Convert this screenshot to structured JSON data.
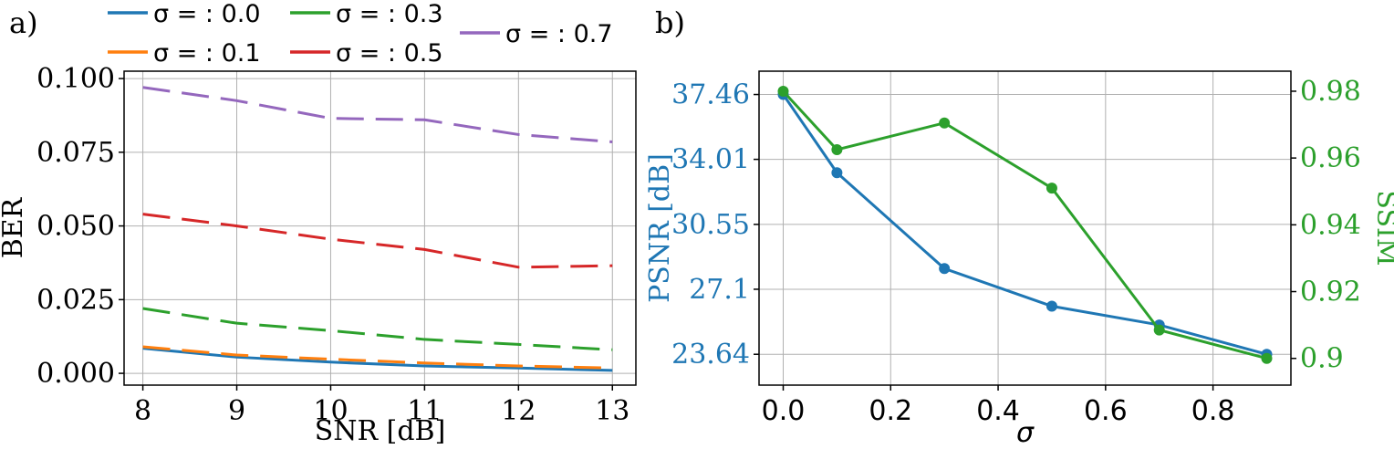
{
  "chart_data": [
    {
      "type": "line",
      "panel_label": "a)",
      "xlabel": "SNR [dB]",
      "ylabel": "BER",
      "xlim": [
        7.8,
        13.25
      ],
      "ylim": [
        -0.004,
        0.1025
      ],
      "xticks": [
        8,
        9,
        10,
        11,
        12,
        13
      ],
      "yticks": [
        0.0,
        0.025,
        0.05,
        0.075,
        0.1
      ],
      "ytick_labels": [
        "0.000",
        "0.025",
        "0.050",
        "0.075",
        "0.100"
      ],
      "xtick_labels": [
        "8",
        "9",
        "10",
        "11",
        "12",
        "13"
      ],
      "grid": true,
      "legend_placement": "top, above plot",
      "x": [
        8,
        9,
        10,
        11,
        12,
        13
      ],
      "series": [
        {
          "name": "σ = : 0.0",
          "color": "#1f77b4",
          "dash": "solid",
          "values": [
            0.0085,
            0.0055,
            0.0038,
            0.0025,
            0.0018,
            0.001
          ]
        },
        {
          "name": "σ = : 0.1",
          "color": "#ff7f0e",
          "dash": "dashed",
          "values": [
            0.009,
            0.0062,
            0.0048,
            0.0035,
            0.0025,
            0.0018
          ]
        },
        {
          "name": "σ = : 0.3",
          "color": "#2ca02c",
          "dash": "dashed",
          "values": [
            0.022,
            0.017,
            0.0145,
            0.0115,
            0.0098,
            0.008
          ]
        },
        {
          "name": "σ = : 0.5",
          "color": "#d62728",
          "dash": "dashed",
          "values": [
            0.054,
            0.05,
            0.0455,
            0.042,
            0.036,
            0.0365
          ]
        },
        {
          "name": "σ = : 0.7",
          "color": "#9467bd",
          "dash": "dashed",
          "values": [
            0.097,
            0.0925,
            0.0865,
            0.086,
            0.081,
            0.0785
          ]
        }
      ]
    },
    {
      "type": "line",
      "panel_label": "b)",
      "xlabel": "σ",
      "ylabel": "PSNR [dB]",
      "y2label": "SSIM",
      "xlim": [
        -0.045,
        0.945
      ],
      "ylim": [
        22.0,
        38.7
      ],
      "y2lim": [
        0.892,
        0.986
      ],
      "xticks": [
        0.0,
        0.2,
        0.4,
        0.6,
        0.8
      ],
      "xtick_labels": [
        "0.0",
        "0.2",
        "0.4",
        "0.6",
        "0.8"
      ],
      "yticks": [
        23.64,
        27.1,
        30.55,
        34.01,
        37.46
      ],
      "ytick_labels": [
        "23.64",
        "27.1",
        "30.55",
        "34.01",
        "37.46"
      ],
      "y2ticks": [
        0.9,
        0.92,
        0.94,
        0.96,
        0.98
      ],
      "y2tick_labels": [
        "0.9",
        "0.92",
        "0.94",
        "0.96",
        "0.98"
      ],
      "grid": true,
      "x": [
        0.0,
        0.1,
        0.3,
        0.5,
        0.7,
        0.9
      ],
      "series": [
        {
          "name": "PSNR",
          "axis": "left",
          "color": "#1f77b4",
          "values": [
            37.46,
            33.3,
            28.2,
            26.2,
            25.2,
            23.64
          ]
        },
        {
          "name": "SSIM",
          "axis": "right",
          "color": "#2ca02c",
          "values": [
            0.98,
            0.9625,
            0.9705,
            0.951,
            0.9085,
            0.9
          ]
        }
      ]
    }
  ]
}
